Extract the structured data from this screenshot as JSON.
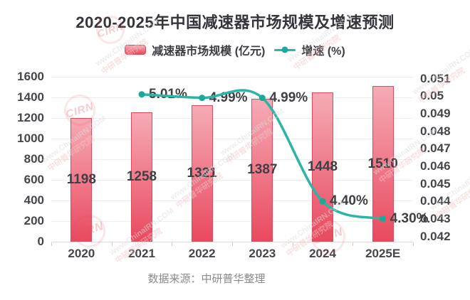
{
  "title": "2020-2025年中国减速器市场规模及增速预测",
  "legend": {
    "bar_label": "减速器市场规模 (亿元)",
    "line_label": "增速 (%)"
  },
  "source": "数据来源：中研普华整理",
  "watermark": {
    "line1": "www.ChinaIRN.COM",
    "line2": "中研普华研究院",
    "stamp": "CIRN"
  },
  "colors": {
    "bar_top": "#f6abb5",
    "bar_bottom": "#e9495f",
    "bar_border": "#da4a5f",
    "line": "#2ab5a6",
    "dot": "#1ca99a",
    "title_text": "#35353b",
    "axis_text": "#45454a",
    "label_text": "#3f3f44",
    "source_text": "#8a8a8a",
    "grid": "#ededed",
    "axis_line": "#e3d8d8"
  },
  "chart_data": {
    "type": "combo",
    "title": "2020-2025年中国减速器市场规模及增速预测",
    "categories": [
      "2020",
      "2021",
      "2022",
      "2023",
      "2024",
      "2025E"
    ],
    "series": [
      {
        "name": "减速器市场规模 (亿元)",
        "type": "bar",
        "y_axis": "left",
        "values": [
          1198,
          1258,
          1321,
          1387,
          1448,
          1510
        ],
        "data_labels": [
          "1198",
          "1258",
          "1321",
          "1387",
          "1448",
          "1510"
        ]
      },
      {
        "name": "增速 (%)",
        "type": "line",
        "y_axis": "right",
        "values_percent": [
          null,
          5.01,
          4.99,
          4.99,
          4.4,
          4.3
        ],
        "data_labels": [
          null,
          "5.01%",
          "4.99%",
          "4.99%",
          "4.40%",
          "4.30%"
        ]
      }
    ],
    "left_axis": {
      "min": 0,
      "max": 1600,
      "tick_step": 200,
      "ticks": [
        "1600",
        "1400",
        "1200",
        "1000",
        "800",
        "600",
        "400",
        "200",
        "0"
      ]
    },
    "right_axis": {
      "min": 0.042,
      "max": 0.051,
      "ticks": [
        "0.051",
        "0.05",
        "0.049",
        "0.048",
        "0.047",
        "0.046",
        "0.045",
        "0.044",
        "0.043",
        "0.042"
      ]
    },
    "grid": true,
    "legend_position": "top",
    "line_smooth": true,
    "xlabel": "",
    "ylabel_left": "亿元",
    "ylabel_right": "%"
  }
}
